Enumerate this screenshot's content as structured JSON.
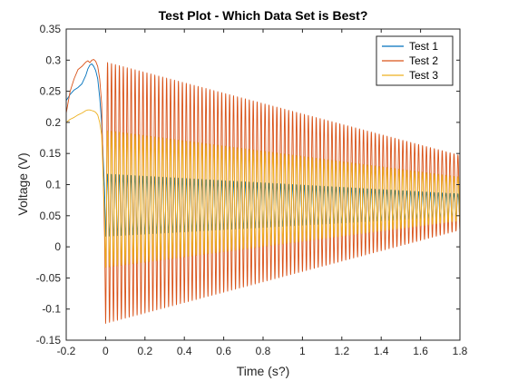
{
  "chart_data": {
    "type": "line",
    "title": "Test Plot - Which Data Set is Best?",
    "xlabel": "Time (s?)",
    "ylabel": "Voltage (V)",
    "xlim": [
      -0.2,
      1.8
    ],
    "ylim": [
      -0.15,
      0.35
    ],
    "xticks": [
      -0.2,
      0,
      0.2,
      0.4,
      0.6,
      0.8,
      1,
      1.2,
      1.4,
      1.6,
      1.8
    ],
    "xtick_labels": [
      "-0.2",
      "0",
      "0.2",
      "0.4",
      "0.6",
      "0.8",
      "1",
      "1.2",
      "1.4",
      "1.6",
      "1.8"
    ],
    "yticks": [
      -0.15,
      -0.1,
      -0.05,
      0,
      0.05,
      0.1,
      0.15,
      0.2,
      0.25,
      0.3,
      0.35
    ],
    "ytick_labels": [
      "-0.15",
      "-0.1",
      "-0.05",
      "0",
      "0.05",
      "0.1",
      "0.15",
      "0.2",
      "0.25",
      "0.3",
      "0.35"
    ],
    "grid": false,
    "box": true,
    "legend_position": "top-right",
    "oscillation": {
      "start_time": 0,
      "frequency_hz": 50
    },
    "series": [
      {
        "name": "Test 1",
        "color": "#0072BD",
        "pre_trigger": {
          "x": [
            -0.2,
            -0.18,
            -0.16,
            -0.14,
            -0.12,
            -0.1,
            -0.09,
            -0.08,
            -0.07,
            -0.06,
            -0.05,
            -0.04,
            -0.03,
            -0.02
          ],
          "y": [
            0.235,
            0.245,
            0.252,
            0.256,
            0.262,
            0.276,
            0.286,
            0.292,
            0.294,
            0.29,
            0.283,
            0.27,
            0.24,
            0.2
          ]
        },
        "offset": 0.067,
        "amplitude_start": 0.05,
        "amplitude_end": 0.018,
        "envelope_min": [
          0.015,
          0.049
        ],
        "envelope_max": [
          0.12,
          0.085
        ]
      },
      {
        "name": "Test 2",
        "color": "#D95319",
        "pre_trigger": {
          "x": [
            -0.2,
            -0.18,
            -0.16,
            -0.14,
            -0.12,
            -0.1,
            -0.09,
            -0.08,
            -0.07,
            -0.06,
            -0.05,
            -0.04,
            -0.03,
            -0.02
          ],
          "y": [
            0.215,
            0.25,
            0.27,
            0.285,
            0.29,
            0.297,
            0.299,
            0.296,
            0.3,
            0.301,
            0.298,
            0.29,
            0.27,
            0.23
          ]
        },
        "offset": 0.087,
        "amplitude_start": 0.21,
        "amplitude_end": 0.06,
        "envelope_min": [
          -0.127,
          0.03
        ],
        "envelope_max": [
          0.3,
          0.145
        ]
      },
      {
        "name": "Test 3",
        "color": "#EDB120",
        "pre_trigger": {
          "x": [
            -0.2,
            -0.18,
            -0.16,
            -0.14,
            -0.12,
            -0.1,
            -0.09,
            -0.08,
            -0.07,
            -0.06,
            -0.05,
            -0.04,
            -0.03,
            -0.02
          ],
          "y": [
            0.2,
            0.205,
            0.208,
            0.212,
            0.215,
            0.219,
            0.22,
            0.22,
            0.219,
            0.218,
            0.216,
            0.212,
            0.2,
            0.18
          ]
        },
        "offset": 0.077,
        "amplitude_start": 0.11,
        "amplitude_end": 0.035,
        "envelope_min": [
          -0.04,
          0.04
        ],
        "envelope_max": [
          0.19,
          0.113
        ]
      }
    ]
  }
}
